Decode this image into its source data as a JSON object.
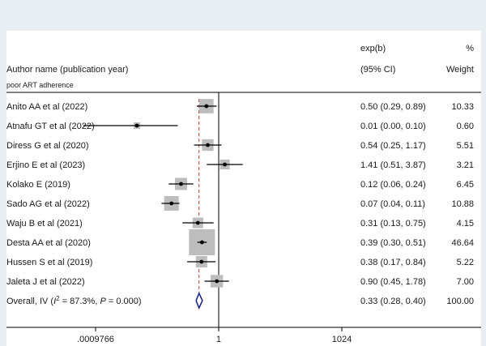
{
  "chart_data": {
    "type": "forest",
    "columns": {
      "effect_header_1": "exp(b)",
      "effect_header_2": "(95% CI)",
      "weight_header_1": "%",
      "weight_header_2": "Weight",
      "study_header": "Author name (publication year)"
    },
    "subgroup_label": "poor ART adherence",
    "x_scale": "log",
    "xlim": [
      0.0009766,
      1024
    ],
    "x_ticks": [
      {
        "value": 0.0009766,
        "label": ".0009766"
      },
      {
        "value": 1,
        "label": "1"
      },
      {
        "value": 1024,
        "label": "1024"
      }
    ],
    "null_line": 1,
    "overall_line": 0.33,
    "studies": [
      {
        "name": "Anito AA et al (2022)",
        "est": 0.5,
        "lo": 0.29,
        "hi": 0.89,
        "ci_text": "0.50 (0.29, 0.89)",
        "weight": 10.33,
        "weight_text": "10.33"
      },
      {
        "name": "Atnafu GT et al (2022)",
        "est": 0.01,
        "lo": 0.0,
        "hi": 0.1,
        "ci_text": "0.01 (0.00, 0.10)",
        "weight": 0.6,
        "weight_text": "0.60"
      },
      {
        "name": "Diress G et al (2020)",
        "est": 0.54,
        "lo": 0.25,
        "hi": 1.17,
        "ci_text": "0.54 (0.25, 1.17)",
        "weight": 5.51,
        "weight_text": "5.51"
      },
      {
        "name": "Erjino E et al (2023)",
        "est": 1.41,
        "lo": 0.51,
        "hi": 3.87,
        "ci_text": "1.41 (0.51, 3.87)",
        "weight": 3.21,
        "weight_text": "3.21"
      },
      {
        "name": "Kolako E (2019)",
        "est": 0.12,
        "lo": 0.06,
        "hi": 0.24,
        "ci_text": "0.12 (0.06, 0.24)",
        "weight": 6.45,
        "weight_text": "6.45"
      },
      {
        "name": "Sado AG et al (2022)",
        "est": 0.07,
        "lo": 0.04,
        "hi": 0.11,
        "ci_text": "0.07 (0.04, 0.11)",
        "weight": 10.88,
        "weight_text": "10.88"
      },
      {
        "name": "Waju B et al (2021)",
        "est": 0.31,
        "lo": 0.13,
        "hi": 0.75,
        "ci_text": "0.31 (0.13, 0.75)",
        "weight": 4.15,
        "weight_text": "4.15"
      },
      {
        "name": "Desta AA et al (2020)",
        "est": 0.39,
        "lo": 0.3,
        "hi": 0.51,
        "ci_text": "0.39 (0.30, 0.51)",
        "weight": 46.64,
        "weight_text": "46.64"
      },
      {
        "name": "Hussen S et al (2019)",
        "est": 0.38,
        "lo": 0.17,
        "hi": 0.84,
        "ci_text": "0.38 (0.17, 0.84)",
        "weight": 5.22,
        "weight_text": "5.22"
      },
      {
        "name": "Jaleta J et al  (2022)",
        "est": 0.9,
        "lo": 0.45,
        "hi": 1.78,
        "ci_text": "0.90 (0.45, 1.78)",
        "weight": 7.0,
        "weight_text": "7.00"
      }
    ],
    "overall": {
      "label_prefix": "Overall, IV (",
      "i2_symbol": "I",
      "i2_sup": "2",
      "i2_rest": " = 87.3%, ",
      "p_symbol": "P",
      "p_rest": " = 0.000)",
      "est": 0.33,
      "lo": 0.28,
      "hi": 0.4,
      "ci_text": "0.33 (0.28, 0.40)",
      "weight_text": "100.00"
    },
    "colors": {
      "ci_line": "#000000",
      "weight_box": "#bdbdbd",
      "null_line": "#000000",
      "overall_line": "#c0392b",
      "diamond": "#1f2a8a",
      "background_outer": "#e9eef2",
      "background_panel": "#ffffff"
    }
  }
}
